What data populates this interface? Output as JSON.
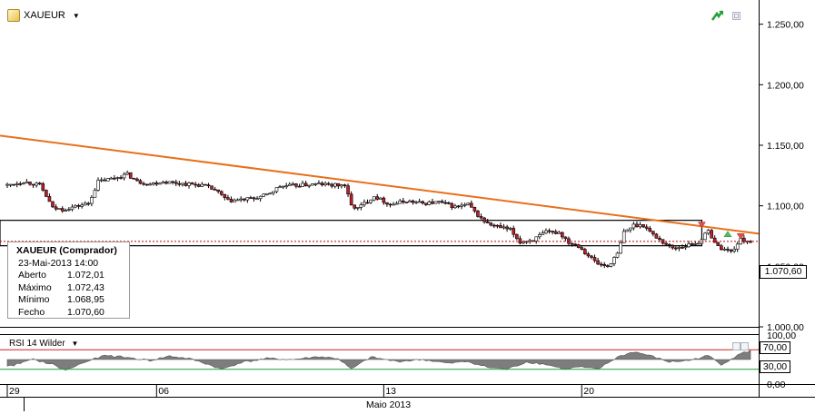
{
  "symbol": {
    "name": "XAUEUR",
    "icon": "pencil-icon"
  },
  "ohlc": {
    "title": "XAUEUR (Comprador)",
    "datetime": "23-Mai-2013 14:00",
    "rows": [
      {
        "label": "Aberto",
        "value": "1.072,01"
      },
      {
        "label": "Máximo",
        "value": "1.072,43"
      },
      {
        "label": "Mínimo",
        "value": "1.068,95"
      },
      {
        "label": "Fecho",
        "value": "1.070,60"
      }
    ]
  },
  "price_tag": "1.070,60",
  "rsi": {
    "label": "RSI 14 Wilder",
    "overbought": "70,00",
    "oversold": "30,00"
  },
  "colors": {
    "bull": "#ffffff",
    "bear": "#c0202a",
    "wick": "#000000",
    "trendline": "#e8701a",
    "rsi_fill": "#7d7d7d",
    "rsi_upper": "#d02020",
    "rsi_lower": "#1a9a3a"
  },
  "icons": [
    "pencil-icon",
    "trend-up-icon",
    "window-restore-icon",
    "sell-marker-icon",
    "buy-marker-icon"
  ],
  "chart_data": [
    {
      "type": "candlestick",
      "title": "XAUEUR",
      "ylim": [
        1000,
        1270
      ],
      "yticks": [
        "1.000,00",
        "1.050,00",
        "1.100,00",
        "1.150,00",
        "1.200,00",
        "1.250,00"
      ],
      "ytick_values": [
        1000,
        1050,
        1100,
        1150,
        1200,
        1250
      ],
      "x_labels": [
        "29",
        "06",
        "13",
        "20"
      ],
      "x_label_index": [
        0,
        46,
        116,
        177
      ],
      "x_month_label": "Maio 2013",
      "candle_count": 230,
      "close_waypoints": [
        [
          0,
          1117
        ],
        [
          5,
          1120
        ],
        [
          10,
          1117
        ],
        [
          12,
          1108
        ],
        [
          14,
          1098
        ],
        [
          17,
          1097
        ],
        [
          22,
          1100
        ],
        [
          25,
          1102
        ],
        [
          28,
          1120
        ],
        [
          33,
          1123
        ],
        [
          37,
          1126
        ],
        [
          40,
          1120
        ],
        [
          44,
          1118
        ],
        [
          48,
          1120
        ],
        [
          55,
          1118
        ],
        [
          60,
          1117
        ],
        [
          64,
          1113
        ],
        [
          68,
          1104
        ],
        [
          72,
          1105
        ],
        [
          76,
          1106
        ],
        [
          80,
          1109
        ],
        [
          84,
          1116
        ],
        [
          90,
          1117
        ],
        [
          96,
          1118
        ],
        [
          100,
          1117
        ],
        [
          104,
          1117
        ],
        [
          106,
          1100
        ],
        [
          108,
          1098
        ],
        [
          110,
          1102
        ],
        [
          113,
          1108
        ],
        [
          118,
          1101
        ],
        [
          123,
          1104
        ],
        [
          128,
          1102
        ],
        [
          133,
          1103
        ],
        [
          138,
          1099
        ],
        [
          142,
          1101
        ],
        [
          145,
          1092
        ],
        [
          148,
          1085
        ],
        [
          152,
          1082
        ],
        [
          155,
          1080
        ],
        [
          158,
          1070
        ],
        [
          162,
          1072
        ],
        [
          166,
          1078
        ],
        [
          170,
          1078
        ],
        [
          173,
          1070
        ],
        [
          176,
          1067
        ],
        [
          179,
          1059
        ],
        [
          182,
          1052
        ],
        [
          185,
          1050
        ],
        [
          188,
          1060
        ],
        [
          190,
          1078
        ],
        [
          193,
          1084
        ],
        [
          196,
          1084
        ],
        [
          199,
          1076
        ],
        [
          202,
          1070
        ],
        [
          205,
          1065
        ],
        [
          209,
          1067
        ],
        [
          213,
          1070
        ],
        [
          216,
          1079
        ],
        [
          219,
          1066
        ],
        [
          223,
          1062
        ],
        [
          226,
          1072
        ],
        [
          229,
          1070.6
        ]
      ],
      "trendline": [
        [
          0,
          1158
        ],
        [
          230,
          1077
        ]
      ],
      "support_box": {
        "high": 1088,
        "low": 1067,
        "from_index": 0,
        "to_index": 214
      },
      "last_price": 1070.6,
      "last_price_label": "1.070,60"
    },
    {
      "type": "area",
      "name": "RSI 14 Wilder",
      "ylim": [
        0,
        100
      ],
      "yticks": [
        "0,00",
        "30,00",
        "70,00",
        "100,00"
      ],
      "ytick_values": [
        0,
        30,
        70,
        100
      ],
      "levels": [
        70,
        30
      ],
      "waypoints": [
        [
          0,
          35
        ],
        [
          8,
          50
        ],
        [
          14,
          40
        ],
        [
          18,
          28
        ],
        [
          24,
          45
        ],
        [
          30,
          58
        ],
        [
          36,
          55
        ],
        [
          44,
          48
        ],
        [
          50,
          57
        ],
        [
          56,
          52
        ],
        [
          62,
          40
        ],
        [
          66,
          30
        ],
        [
          72,
          44
        ],
        [
          80,
          52
        ],
        [
          88,
          50
        ],
        [
          96,
          56
        ],
        [
          102,
          52
        ],
        [
          106,
          30
        ],
        [
          112,
          55
        ],
        [
          120,
          46
        ],
        [
          128,
          50
        ],
        [
          136,
          42
        ],
        [
          142,
          46
        ],
        [
          148,
          34
        ],
        [
          154,
          30
        ],
        [
          160,
          45
        ],
        [
          166,
          40
        ],
        [
          172,
          30
        ],
        [
          176,
          35
        ],
        [
          182,
          30
        ],
        [
          188,
          55
        ],
        [
          193,
          66
        ],
        [
          198,
          58
        ],
        [
          204,
          45
        ],
        [
          210,
          48
        ],
        [
          216,
          58
        ],
        [
          220,
          40
        ],
        [
          226,
          62
        ],
        [
          229,
          68
        ]
      ]
    }
  ]
}
